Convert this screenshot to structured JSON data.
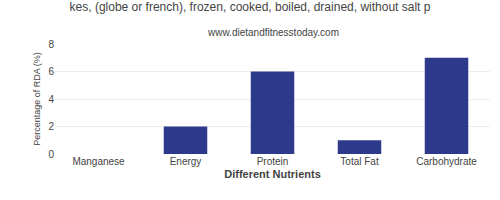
{
  "chart_data": {
    "type": "bar",
    "title": "kes, (globe or french), frozen, cooked, boiled, drained, without salt p",
    "subtitle": "www.dietandfitnesstoday.com",
    "xlabel": "Different Nutrients",
    "ylabel": "Percentage of RDA (%)",
    "categories": [
      "Manganese",
      "Energy",
      "Protein",
      "Total Fat",
      "Carbohydrate"
    ],
    "values": [
      0.0,
      2.0,
      6.0,
      1.0,
      7.0
    ],
    "color": "#2d3a8c",
    "ylim": [
      0,
      8
    ],
    "yticks": [
      0,
      2,
      4,
      6,
      8
    ],
    "grid": true
  }
}
